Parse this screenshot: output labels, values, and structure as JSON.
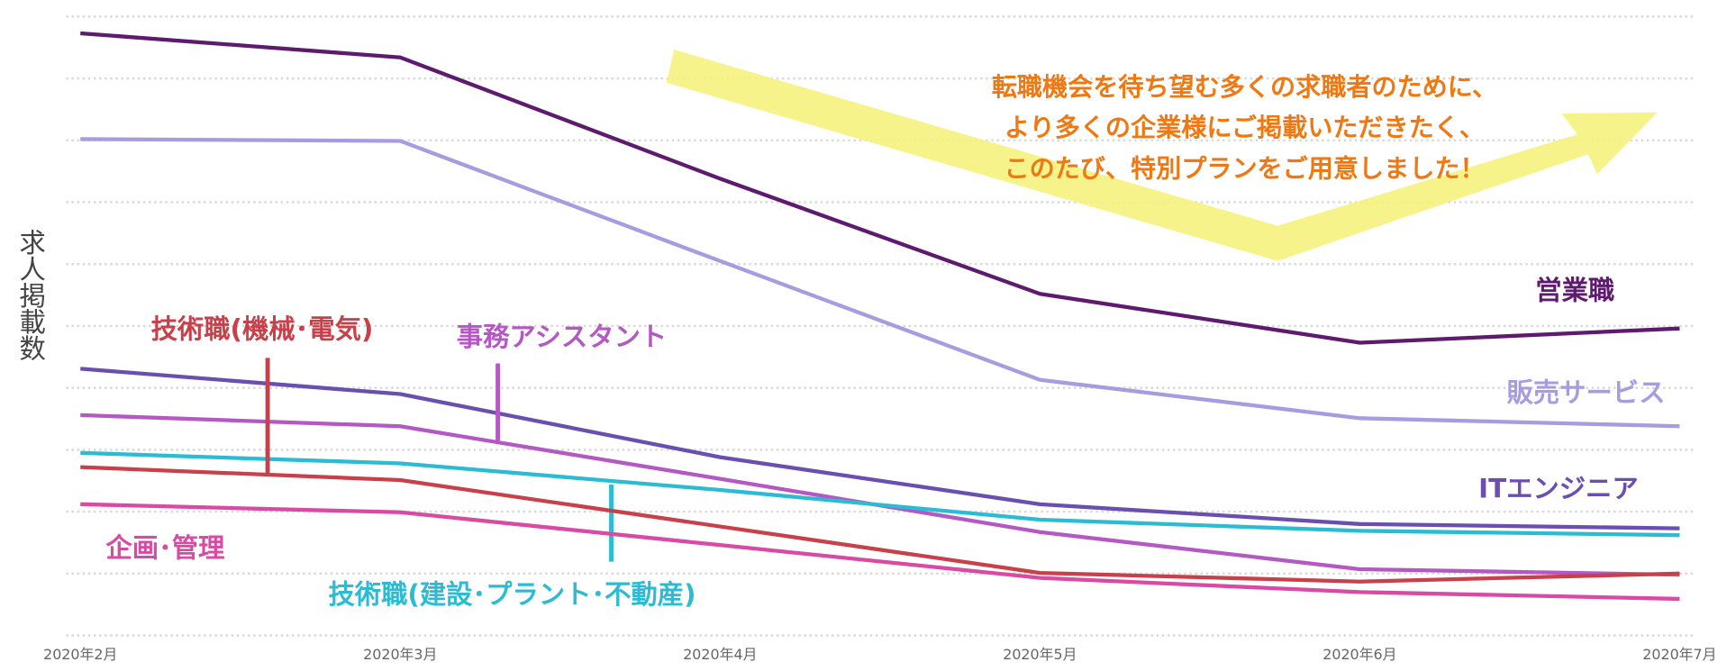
{
  "chart_data": {
    "type": "line",
    "y_label": "求人掲載数",
    "annotation": [
      "転職機会を待ち望む多くの求職者のために、",
      "より多くの企業様にご掲載いただきたく、",
      "このたび、特別プランをご用意しました！"
    ],
    "categories": [
      "2020年2月",
      "2020年3月",
      "2020年4月",
      "2020年5月",
      "2020年6月",
      "2020年7月"
    ],
    "ylim": [
      0,
      100
    ],
    "yticks": [
      0,
      10,
      20,
      30,
      40,
      50,
      60,
      70,
      80,
      90,
      100
    ],
    "grid": true,
    "series": [
      {
        "name": "営業職",
        "color": "#5e1a6e",
        "values": [
          97.3,
          93.4,
          73.8,
          55.2,
          47.3,
          49.6
        ]
      },
      {
        "name": "販売サービス",
        "color": "#a99be0",
        "values": [
          80.2,
          79.9,
          60.5,
          41.3,
          35.1,
          33.8
        ]
      },
      {
        "name": "ITエンジニア",
        "color": "#6a4fb0",
        "values": [
          43.1,
          39.0,
          28.8,
          21.2,
          18.0,
          17.3
        ]
      },
      {
        "name": "事務アシスタント",
        "color": "#b458c4",
        "values": [
          35.6,
          33.8,
          25.3,
          16.7,
          10.7,
          9.8
        ]
      },
      {
        "name": "技術職(建設･プラント･不動産)",
        "color": "#2bbcd4",
        "values": [
          29.5,
          27.8,
          23.5,
          18.7,
          16.9,
          16.2
        ]
      },
      {
        "name": "技術職(機械･電気)",
        "color": "#c8404a",
        "values": [
          27.2,
          25.1,
          17.6,
          10.1,
          8.7,
          10.0
        ]
      },
      {
        "name": "企画･管理",
        "color": "#d84aa4",
        "values": [
          21.2,
          19.9,
          14.6,
          9.3,
          7.0,
          5.9
        ]
      }
    ]
  }
}
